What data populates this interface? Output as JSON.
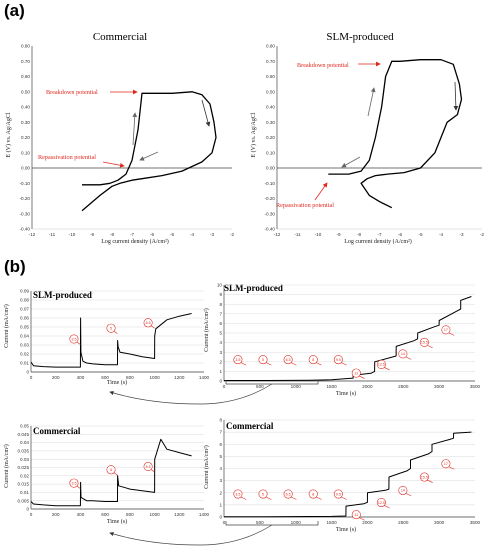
{
  "panel_labels": {
    "a": "(a)",
    "b": "(b)"
  },
  "chart_data": [
    {
      "type": "line",
      "title": "Commercial",
      "xlabel": "Log current density (A/cm²)",
      "ylabel": "E (V) vs. Ag/AgCl",
      "xlim": [
        -12,
        -2
      ],
      "ylim": [
        -0.4,
        0.8
      ],
      "xticks": [
        "-12",
        "-11",
        "-10",
        "-9",
        "-8",
        "-7",
        "-6",
        "-5",
        "-4",
        "-3",
        "-2"
      ],
      "yticks": [
        "-0.40",
        "-0.30",
        "-0.20",
        "-0.10",
        "0.00",
        "0.10",
        "0.20",
        "0.30",
        "0.40",
        "0.50",
        "0.60",
        "0.70",
        "0.80"
      ],
      "annotations": [
        "Breakdown potential",
        "Repassivation potential"
      ],
      "series": [
        {
          "x": [
            -9.5,
            -8.6,
            -8.1,
            -7.7,
            -7.3,
            -7.0,
            -6.7,
            -6.5,
            -6.0,
            -5.0,
            -4.0,
            -3.5,
            -3.1,
            -2.9,
            -2.8,
            -3.0,
            -3.5,
            -4.5,
            -5.5,
            -6.5,
            -7.0,
            -7.3,
            -7.6,
            -8.0,
            -8.6,
            -9.5
          ],
          "y": [
            -0.11,
            -0.11,
            -0.1,
            -0.08,
            -0.04,
            0.05,
            0.25,
            0.49,
            0.49,
            0.49,
            0.5,
            0.48,
            0.42,
            0.3,
            0.2,
            0.1,
            0.04,
            -0.02,
            -0.05,
            -0.07,
            -0.08,
            -0.09,
            -0.1,
            -0.12,
            -0.18,
            -0.28
          ]
        }
      ]
    },
    {
      "type": "line",
      "title": "SLM-produced",
      "xlabel": "Log current density (A/cm²)",
      "ylabel": "E (V) vs. Ag/AgCl",
      "xlim": [
        -12,
        -2
      ],
      "ylim": [
        -0.4,
        0.8
      ],
      "xticks": [
        "-12",
        "-11",
        "-10",
        "-9",
        "-8",
        "-7",
        "-6",
        "-5",
        "-4",
        "-3",
        "-2"
      ],
      "yticks": [
        "-0.40",
        "-0.30",
        "-0.20",
        "-0.10",
        "0.00",
        "0.10",
        "0.20",
        "0.30",
        "0.40",
        "0.50",
        "0.60",
        "0.70",
        "0.80"
      ],
      "annotations": [
        "Breakdown potential",
        "Repassivation potential"
      ],
      "series": [
        {
          "x": [
            -9.5,
            -8.5,
            -7.9,
            -7.5,
            -7.2,
            -6.9,
            -6.7,
            -6.4,
            -6.0,
            -5.0,
            -4.0,
            -3.4,
            -3.1,
            -3.0,
            -3.2,
            -3.7,
            -4.0,
            -4.3,
            -5.0,
            -5.8,
            -6.6,
            -7.2,
            -7.6,
            -7.9,
            -7.5,
            -7.0,
            -6.4
          ],
          "y": [
            -0.04,
            -0.04,
            -0.02,
            0.05,
            0.2,
            0.4,
            0.6,
            0.7,
            0.7,
            0.71,
            0.71,
            0.68,
            0.55,
            0.45,
            0.35,
            0.3,
            0.2,
            0.1,
            0.0,
            -0.03,
            -0.04,
            -0.05,
            -0.07,
            -0.1,
            -0.18,
            -0.22,
            -0.26
          ]
        }
      ]
    },
    {
      "type": "line",
      "title": "SLM-produced",
      "xlabel": "Time (s)",
      "ylabel": "Current (mA/cm²)",
      "xlim": [
        0,
        1400
      ],
      "ylim": [
        0,
        0.09
      ],
      "xticks": [
        "0",
        "200",
        "400",
        "600",
        "800",
        "1000",
        "1200",
        "1400"
      ],
      "yticks": [
        "0",
        "0.01",
        "0.02",
        "0.03",
        "0.04",
        "0.05",
        "0.06",
        "0.07",
        "0.08",
        "0.09"
      ],
      "bubbles": [
        "3.5",
        "5",
        "6.5"
      ],
      "series": [
        {
          "x": [
            0,
            20,
            100,
            200,
            300,
            400,
            401,
            404,
            420,
            450,
            500,
            600,
            700,
            701,
            705,
            720,
            800,
            900,
            1000,
            1001,
            1010,
            1100,
            1200,
            1300
          ],
          "y": [
            0.011,
            0.007,
            0.006,
            0.0055,
            0.0055,
            0.0055,
            0.06,
            0.022,
            0.012,
            0.01,
            0.009,
            0.008,
            0.008,
            0.035,
            0.028,
            0.022,
            0.02,
            0.017,
            0.015,
            0.04,
            0.048,
            0.058,
            0.062,
            0.065
          ]
        }
      ]
    },
    {
      "type": "line",
      "title": "SLM-produced",
      "xlabel": "Time (s)",
      "ylabel": "Current (mA/cm²)",
      "xlim": [
        0,
        3500
      ],
      "ylim": [
        0,
        10
      ],
      "xticks": [
        "0",
        "500",
        "1000",
        "1500",
        "2000",
        "2500",
        "3000",
        "3500"
      ],
      "yticks": [
        "0",
        "1",
        "2",
        "3",
        "4",
        "5",
        "6",
        "7",
        "8",
        "9",
        "10"
      ],
      "bubbles": [
        "3.5",
        "5",
        "6.5",
        "8",
        "9.5",
        "11",
        "12.5",
        "14",
        "15.5",
        "17"
      ],
      "series": [
        {
          "x": [
            0,
            300,
            600,
            900,
            1200,
            1500,
            1800,
            1801,
            2050,
            2100,
            2101,
            2350,
            2400,
            2401,
            2650,
            2700,
            2701,
            2950,
            3000,
            3001,
            3250,
            3300,
            3301,
            3450
          ],
          "y": [
            0.05,
            0.05,
            0.05,
            0.06,
            0.07,
            0.12,
            0.3,
            0.6,
            0.8,
            1.0,
            2.0,
            2.5,
            2.6,
            3.6,
            4.2,
            4.4,
            5.0,
            5.7,
            5.8,
            6.3,
            7.3,
            7.5,
            8.4,
            8.8
          ]
        }
      ]
    },
    {
      "type": "line",
      "title": "Commercial",
      "xlabel": "Time (s)",
      "ylabel": "Current (mA/cm²)",
      "xlim": [
        0,
        1400
      ],
      "ylim": [
        0,
        0.05
      ],
      "xticks": [
        "0",
        "200",
        "400",
        "600",
        "800",
        "1000",
        "1200",
        "1400"
      ],
      "yticks": [
        "0",
        "0.005",
        "0.01",
        "0.015",
        "0.02",
        "0.025",
        "0.03",
        "0.035",
        "0.04",
        "0.045",
        "0.05"
      ],
      "bubbles": [
        "3.5",
        "5",
        "6.5"
      ],
      "series": [
        {
          "x": [
            0,
            20,
            100,
            200,
            300,
            400,
            401,
            405,
            450,
            500,
            600,
            700,
            701,
            710,
            800,
            900,
            1000,
            1001,
            1050,
            1100,
            1200,
            1300
          ],
          "y": [
            0.0045,
            0.003,
            0.0025,
            0.002,
            0.002,
            0.002,
            0.016,
            0.007,
            0.005,
            0.005,
            0.0045,
            0.0045,
            0.02,
            0.014,
            0.012,
            0.011,
            0.01,
            0.03,
            0.042,
            0.036,
            0.034,
            0.032
          ]
        }
      ]
    },
    {
      "type": "line",
      "title": "Commercial",
      "xlabel": "Time (s)",
      "ylabel": "Current (mA/cm²)",
      "xlim": [
        0,
        3500
      ],
      "ylim": [
        0,
        8
      ],
      "xticks": [
        "0",
        "500",
        "1000",
        "1500",
        "2000",
        "2500",
        "3000",
        "3500"
      ],
      "yticks": [
        "0",
        "1",
        "2",
        "3",
        "4",
        "5",
        "6",
        "7",
        "8"
      ],
      "bubbles": [
        "3.5",
        "5",
        "6.5",
        "8",
        "9.5",
        "11",
        "12.5",
        "14",
        "15.5",
        "17"
      ],
      "series": [
        {
          "x": [
            0,
            300,
            600,
            900,
            1200,
            1500,
            1700,
            1701,
            1950,
            2000,
            2001,
            2250,
            2300,
            2301,
            2550,
            2600,
            2601,
            2850,
            2900,
            2901,
            3150,
            3200,
            3201,
            3450
          ],
          "y": [
            0.02,
            0.02,
            0.02,
            0.03,
            0.04,
            0.05,
            0.08,
            0.9,
            1.1,
            1.2,
            2.0,
            2.2,
            2.3,
            3.3,
            3.8,
            4.0,
            4.7,
            5.2,
            5.4,
            6.0,
            6.4,
            6.5,
            6.9,
            7.0
          ]
        }
      ]
    }
  ]
}
